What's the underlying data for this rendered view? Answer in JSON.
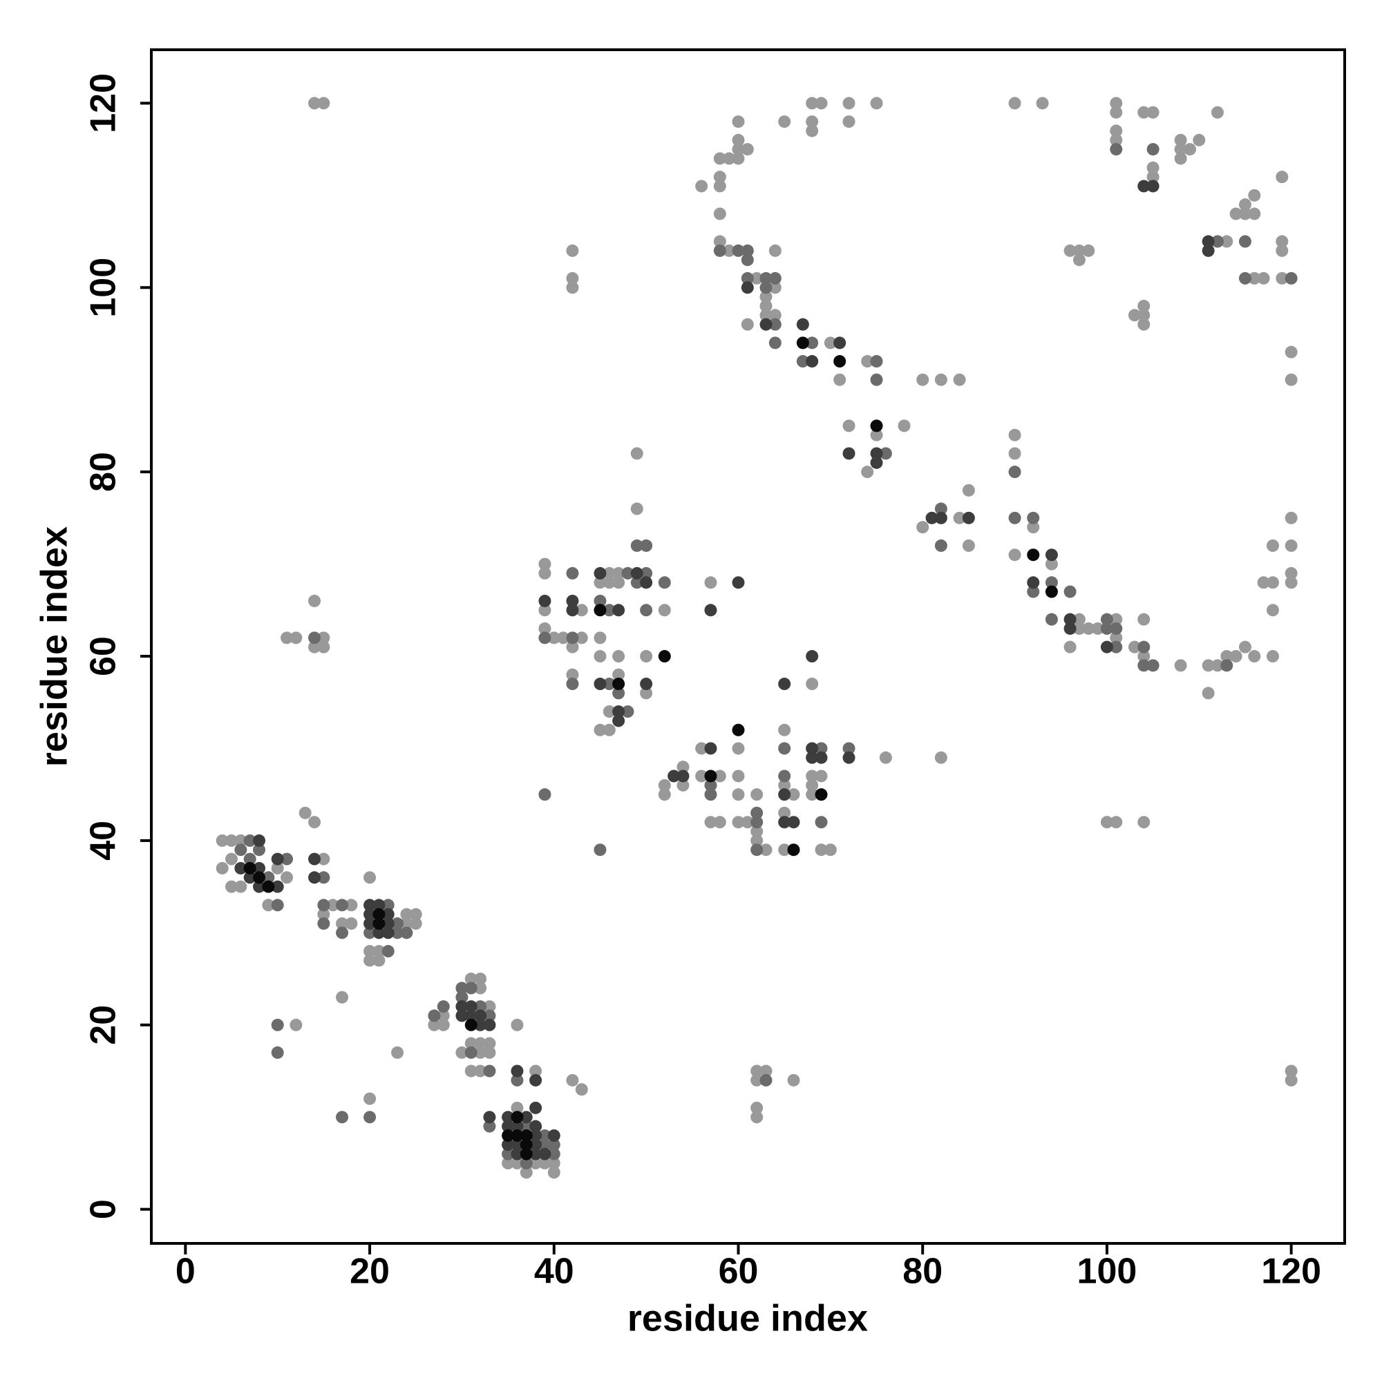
{
  "chart_data": {
    "type": "scatter",
    "xlabel": "residue index",
    "ylabel": "residue index",
    "xlim": [
      -3.7,
      125.8
    ],
    "ylim": [
      -3.7,
      125.8
    ],
    "xticks": [
      0,
      20,
      40,
      60,
      80,
      100,
      120
    ],
    "yticks": [
      0,
      20,
      40,
      60,
      80,
      100,
      120
    ],
    "series": [
      {
        "color": "#999999",
        "x": [
          4,
          5,
          6,
          4,
          5,
          5,
          6,
          11,
          10,
          9,
          15,
          13,
          14,
          15,
          16,
          18,
          17,
          18,
          20,
          24,
          25,
          24,
          25,
          20,
          21,
          20,
          21,
          17,
          12,
          23,
          28,
          27,
          28,
          31,
          32,
          32,
          33,
          31,
          32,
          30,
          32,
          33,
          33,
          31,
          32,
          36,
          38,
          42,
          43,
          20,
          36,
          35,
          36,
          38,
          39,
          40,
          37,
          40,
          14,
          15,
          14,
          11,
          12,
          15,
          14,
          15,
          42,
          42,
          42,
          39,
          39,
          43,
          39,
          39,
          40,
          41,
          43,
          42,
          42,
          46,
          47,
          45,
          46,
          47,
          45,
          45,
          47,
          47,
          46,
          45,
          46,
          49,
          49,
          52,
          50,
          50,
          57,
          52,
          52,
          54,
          54,
          56,
          56,
          58,
          57,
          58,
          60,
          60,
          60,
          60,
          61,
          62,
          62,
          62,
          63,
          65,
          65,
          66,
          65,
          65,
          68,
          68,
          69,
          68,
          68,
          69,
          70,
          76,
          82,
          62,
          63,
          62,
          62,
          62,
          66,
          56,
          58,
          59,
          58,
          58,
          60,
          60,
          60,
          61,
          60,
          58,
          58,
          59,
          62,
          64,
          63,
          63,
          63,
          64,
          61,
          64,
          65,
          70,
          71,
          68,
          69,
          68,
          68,
          72,
          72,
          75,
          74,
          72,
          75,
          74,
          78,
          80,
          82,
          84,
          80,
          84,
          85,
          85,
          90,
          90,
          90,
          92,
          94,
          96,
          97,
          97,
          98,
          99,
          101,
          101,
          100,
          101,
          104,
          103,
          104,
          104,
          108,
          111,
          112,
          111,
          113,
          114,
          115,
          116,
          118,
          118,
          117,
          118,
          118,
          120,
          120,
          120,
          120,
          90,
          93,
          101,
          101,
          101,
          101,
          104,
          105,
          105,
          105,
          108,
          108,
          108,
          109,
          110,
          112,
          119,
          116,
          115,
          114,
          115,
          116,
          113,
          119,
          119,
          116,
          117,
          119,
          96,
          97,
          98,
          97,
          103,
          104,
          104,
          104,
          120,
          120,
          120,
          120
        ],
        "y": [
          40,
          40,
          40,
          37,
          38,
          35,
          35,
          36,
          37,
          33,
          38,
          43,
          42,
          32,
          33,
          33,
          31,
          31,
          36,
          32,
          32,
          31,
          31,
          28,
          28,
          27,
          27,
          23,
          20,
          17,
          21,
          20,
          20,
          25,
          25,
          24,
          22,
          18,
          18,
          17,
          17,
          17,
          18,
          15,
          15,
          20,
          15,
          14,
          13,
          12,
          11,
          5,
          5,
          5,
          5,
          5,
          4,
          4,
          120,
          120,
          66,
          62,
          62,
          62,
          61,
          61,
          104,
          101,
          100,
          70,
          69,
          65,
          65,
          63,
          62,
          62,
          62,
          61,
          58,
          69,
          69,
          68,
          68,
          68,
          62,
          60,
          60,
          58,
          54,
          52,
          52,
          76,
          82,
          65,
          60,
          56,
          68,
          46,
          45,
          48,
          46,
          50,
          47,
          47,
          42,
          42,
          50,
          47,
          45,
          42,
          42,
          45,
          41,
          40,
          39,
          52,
          46,
          45,
          43,
          39,
          57,
          47,
          47,
          46,
          45,
          39,
          39,
          49,
          49,
          15,
          15,
          14,
          11,
          10,
          14,
          111,
          114,
          114,
          112,
          111,
          118,
          116,
          115,
          115,
          114,
          108,
          105,
          104,
          101,
          100,
          99,
          98,
          97,
          97,
          96,
          104,
          118,
          94,
          90,
          120,
          120,
          118,
          117,
          120,
          118,
          120,
          92,
          85,
          84,
          80,
          85,
          90,
          90,
          90,
          74,
          75,
          78,
          72,
          84,
          82,
          71,
          74,
          70,
          61,
          64,
          63,
          63,
          63,
          64,
          62,
          42,
          42,
          42,
          61,
          60,
          64,
          59,
          59,
          59,
          56,
          60,
          60,
          61,
          60,
          60,
          65,
          68,
          68,
          72,
          75,
          72,
          69,
          68,
          120,
          120,
          120,
          119,
          117,
          116,
          119,
          119,
          113,
          112,
          116,
          115,
          114,
          115,
          116,
          119,
          112,
          110,
          109,
          108,
          108,
          108,
          105,
          105,
          104,
          101,
          101,
          101,
          104,
          104,
          104,
          103,
          97,
          98,
          97,
          96,
          93,
          90,
          15,
          14
        ]
      },
      {
        "color": "#6b6b6b",
        "x": [
          7,
          6,
          7,
          8,
          10,
          9,
          11,
          15,
          15,
          15,
          17,
          17,
          22,
          23,
          20,
          23,
          24,
          22,
          10,
          10,
          27,
          28,
          30,
          30,
          31,
          32,
          33,
          31,
          33,
          36,
          33,
          20,
          17,
          37,
          39,
          39,
          40,
          35,
          40,
          37,
          14,
          39,
          45,
          42,
          39,
          42,
          42,
          45,
          46,
          46,
          47,
          48,
          49,
          50,
          48,
          50,
          49,
          50,
          52,
          57,
          57,
          62,
          62,
          62,
          65,
          65,
          69,
          69,
          72,
          63,
          58,
          60,
          61,
          61,
          63,
          64,
          61,
          63,
          64,
          64,
          68,
          67,
          75,
          75,
          76,
          82,
          82,
          90,
          90,
          92,
          92,
          94,
          94,
          96,
          100,
          100,
          101,
          101,
          104,
          104,
          105,
          113,
          101,
          105,
          112,
          115,
          115,
          120
        ],
        "y": [
          40,
          39,
          38,
          39,
          33,
          36,
          38,
          36,
          33,
          31,
          33,
          30,
          33,
          31,
          30,
          30,
          30,
          28,
          20,
          17,
          21,
          22,
          24,
          23,
          24,
          22,
          21,
          17,
          15,
          14,
          9,
          10,
          10,
          9,
          8,
          7,
          7,
          6,
          6,
          5,
          62,
          45,
          39,
          69,
          62,
          62,
          57,
          66,
          65,
          57,
          56,
          54,
          72,
          72,
          69,
          69,
          68,
          65,
          68,
          46,
          45,
          43,
          42,
          39,
          50,
          47,
          50,
          42,
          50,
          14,
          104,
          104,
          104,
          103,
          101,
          101,
          101,
          100,
          96,
          94,
          94,
          92,
          92,
          90,
          82,
          76,
          72,
          80,
          75,
          75,
          67,
          68,
          64,
          67,
          64,
          63,
          63,
          61,
          61,
          59,
          59,
          59,
          115,
          115,
          105,
          105,
          101,
          101
        ]
      },
      {
        "color": "#3d3d3d",
        "x": [
          8,
          8,
          8,
          10,
          10,
          6,
          7,
          14,
          14,
          20,
          21,
          20,
          22,
          20,
          22,
          21,
          22,
          30,
          31,
          30,
          31,
          32,
          32,
          33,
          36,
          38,
          33,
          35,
          37,
          38,
          35,
          36,
          38,
          38,
          40,
          35,
          36,
          38,
          36,
          38,
          39,
          39,
          42,
          42,
          45,
          47,
          45,
          47,
          47,
          49,
          50,
          50,
          57,
          60,
          53,
          54,
          57,
          65,
          65,
          65,
          66,
          68,
          68,
          68,
          69,
          72,
          61,
          63,
          67,
          68,
          71,
          75,
          75,
          72,
          81,
          82,
          85,
          92,
          94,
          96,
          96,
          100,
          104,
          105,
          111,
          111
        ],
        "y": [
          40,
          37,
          35,
          35,
          38,
          37,
          36,
          38,
          36,
          33,
          33,
          32,
          32,
          31,
          31,
          30,
          30,
          22,
          22,
          21,
          21,
          21,
          20,
          20,
          15,
          14,
          10,
          10,
          10,
          11,
          9,
          9,
          9,
          8,
          8,
          7,
          7,
          7,
          6,
          6,
          6,
          66,
          66,
          65,
          69,
          65,
          57,
          54,
          53,
          69,
          68,
          57,
          65,
          68,
          47,
          47,
          50,
          57,
          45,
          42,
          42,
          60,
          50,
          49,
          49,
          49,
          100,
          96,
          96,
          92,
          94,
          82,
          81,
          82,
          75,
          75,
          75,
          68,
          71,
          64,
          63,
          61,
          111,
          111,
          105,
          104
        ]
      },
      {
        "color": "#0a0a0a",
        "x": [
          7,
          8,
          9,
          21,
          21,
          31,
          36,
          35,
          36,
          37,
          37,
          37,
          45,
          47,
          52,
          57,
          60,
          66,
          69,
          67,
          71,
          75,
          92,
          94
        ],
        "y": [
          37,
          36,
          35,
          32,
          31,
          20,
          10,
          8,
          8,
          8,
          7,
          6,
          65,
          57,
          60,
          47,
          52,
          39,
          45,
          94,
          92,
          85,
          71,
          67
        ]
      }
    ]
  }
}
